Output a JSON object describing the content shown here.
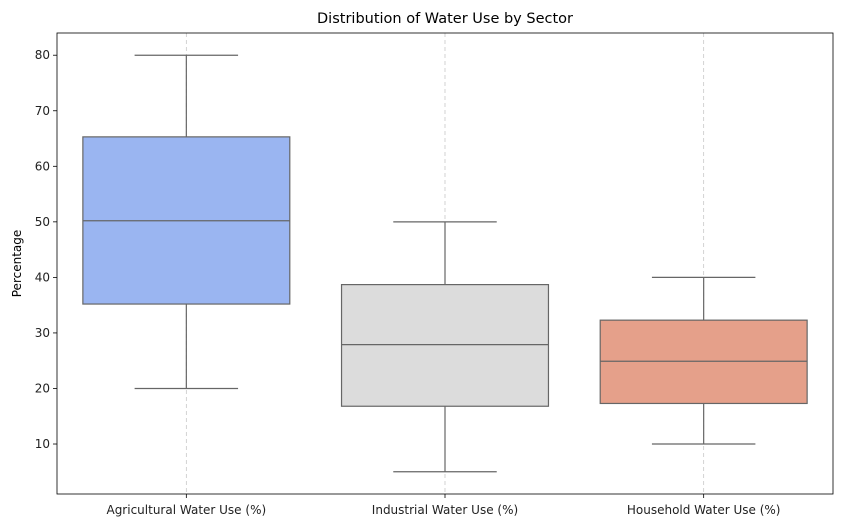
{
  "chart_data": {
    "type": "box",
    "title": "Distribution of Water Use by Sector",
    "xlabel": "",
    "ylabel": "Percentage",
    "ylim": [
      1,
      84
    ],
    "yticks": [
      10,
      20,
      30,
      40,
      50,
      60,
      70,
      80
    ],
    "grid": "x-dashed",
    "categories": [
      "Agricultural Water Use (%)",
      "Industrial Water Use (%)",
      "Household Water Use (%)"
    ],
    "boxes": [
      {
        "category": "Agricultural Water Use (%)",
        "min": 20,
        "q1": 35.2,
        "median": 50.2,
        "q3": 65.3,
        "max": 80,
        "color": "#9ab5f1"
      },
      {
        "category": "Industrial Water Use (%)",
        "min": 5,
        "q1": 16.8,
        "median": 27.9,
        "q3": 38.7,
        "max": 50,
        "color": "#dcdcdc"
      },
      {
        "category": "Household Water Use (%)",
        "min": 10,
        "q1": 17.3,
        "median": 24.9,
        "q3": 32.3,
        "max": 40,
        "color": "#e5a08a"
      }
    ],
    "line_color": "#666666",
    "grid_color": "#c8c8c8"
  }
}
